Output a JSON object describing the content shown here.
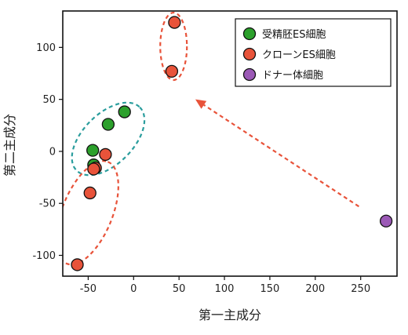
{
  "chart_data": {
    "type": "scatter",
    "xlabel": "第一主成分",
    "ylabel": "第二主成分",
    "xlim": [
      -78,
      290
    ],
    "ylim": [
      -120,
      135
    ],
    "x_ticks": [
      -50,
      0,
      50,
      100,
      150,
      200,
      250
    ],
    "y_ticks": [
      -100,
      -50,
      0,
      50,
      100
    ],
    "legend_position": "top-right",
    "series": [
      {
        "name": "受精胚ES細胞",
        "color": "#2ca02c",
        "points": [
          {
            "x": -10,
            "y": 38
          },
          {
            "x": -28,
            "y": 26
          },
          {
            "x": -45,
            "y": 1
          },
          {
            "x": -44,
            "y": -13
          }
        ]
      },
      {
        "name": "クローンES細胞",
        "color": "#e8533a",
        "points": [
          {
            "x": 45,
            "y": 124
          },
          {
            "x": 42,
            "y": 77
          },
          {
            "x": -31,
            "y": -3
          },
          {
            "x": -42,
            "y": -16
          },
          {
            "x": -44,
            "y": -17
          },
          {
            "x": -48,
            "y": -40
          },
          {
            "x": -62,
            "y": -109
          }
        ]
      },
      {
        "name": "ドナー体細胞",
        "color": "#9b59b6",
        "points": [
          {
            "x": 278,
            "y": -67
          }
        ]
      }
    ],
    "annotations": [
      {
        "type": "ellipse",
        "style": "dashed",
        "color": "#e8533a",
        "cx": 44,
        "cy": 101,
        "rx": 17,
        "ry": 43,
        "rotate": 0
      },
      {
        "type": "ellipse",
        "style": "dashed",
        "color": "#2a9d9d",
        "cx": -28,
        "cy": 12,
        "rx": 57,
        "ry": 32,
        "rotate": -45
      },
      {
        "type": "ellipse",
        "style": "dashed",
        "color": "#e8533a",
        "cx": -51,
        "cy": -59,
        "rx": 70,
        "ry": 32,
        "rotate": -68
      },
      {
        "type": "arrow",
        "style": "dashed",
        "color": "#e8533a",
        "from": [
          248,
          -53
        ],
        "to": [
          68,
          50
        ]
      }
    ]
  }
}
